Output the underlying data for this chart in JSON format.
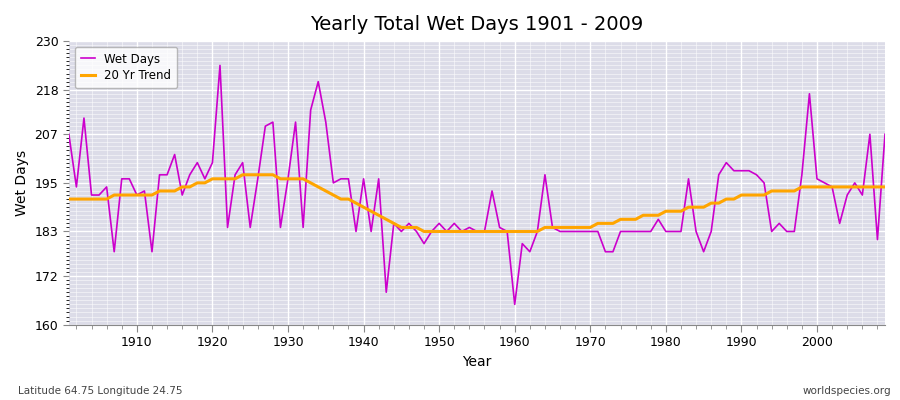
{
  "title": "Yearly Total Wet Days 1901 - 2009",
  "xlabel": "Year",
  "ylabel": "Wet Days",
  "footnote_left": "Latitude 64.75 Longitude 24.75",
  "footnote_right": "worldspecies.org",
  "ylim": [
    160,
    230
  ],
  "yticks": [
    160,
    172,
    183,
    195,
    207,
    218,
    230
  ],
  "bg_color": "#dcdce8",
  "fig_color": "#ffffff",
  "line_color_wet": "#cc00cc",
  "line_color_trend": "#FFA500",
  "wet_days": [
    207,
    194,
    211,
    192,
    192,
    194,
    178,
    196,
    196,
    192,
    193,
    178,
    197,
    197,
    202,
    192,
    197,
    200,
    196,
    200,
    224,
    184,
    197,
    200,
    184,
    196,
    209,
    210,
    184,
    196,
    210,
    184,
    213,
    220,
    210,
    195,
    196,
    196,
    183,
    196,
    183,
    196,
    168,
    185,
    183,
    185,
    183,
    180,
    183,
    185,
    183,
    185,
    183,
    184,
    183,
    183,
    193,
    184,
    183,
    165,
    180,
    178,
    183,
    197,
    184,
    183,
    183,
    183,
    183,
    183,
    183,
    178,
    178,
    183,
    183,
    183,
    183,
    183,
    186,
    183,
    183,
    183,
    196,
    183,
    178,
    183,
    197,
    200,
    198,
    198,
    198,
    197,
    195,
    183,
    185,
    183,
    183,
    197,
    217,
    196,
    195,
    194,
    185,
    192,
    195,
    192,
    207,
    181,
    207
  ],
  "trend_20yr": [
    191,
    191,
    191,
    191,
    191,
    191,
    192,
    192,
    192,
    192,
    192,
    192,
    193,
    193,
    193,
    194,
    194,
    195,
    195,
    196,
    196,
    196,
    196,
    197,
    197,
    197,
    197,
    197,
    196,
    196,
    196,
    196,
    195,
    194,
    193,
    192,
    191,
    191,
    190,
    189,
    188,
    187,
    186,
    185,
    184,
    184,
    184,
    183,
    183,
    183,
    183,
    183,
    183,
    183,
    183,
    183,
    183,
    183,
    183,
    183,
    183,
    183,
    183,
    184,
    184,
    184,
    184,
    184,
    184,
    184,
    185,
    185,
    185,
    186,
    186,
    186,
    187,
    187,
    187,
    188,
    188,
    188,
    189,
    189,
    189,
    190,
    190,
    191,
    191,
    192,
    192,
    192,
    192,
    193,
    193,
    193,
    193,
    194,
    194,
    194,
    194,
    194,
    194,
    194,
    194,
    194,
    194,
    194,
    194
  ],
  "start_year": 1901
}
